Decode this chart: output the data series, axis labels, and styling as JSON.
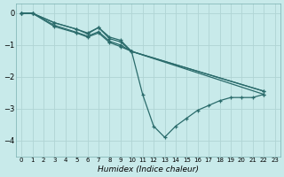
{
  "title": "",
  "xlabel": "Humidex (Indice chaleur)",
  "ylabel": "",
  "bg_color": "#c8eaea",
  "line_color": "#2a6b6b",
  "grid_color": "#d0e8e8",
  "xlim": [
    -0.5,
    23.5
  ],
  "ylim": [
    -4.5,
    0.3
  ],
  "xticks": [
    0,
    1,
    2,
    3,
    4,
    5,
    6,
    7,
    8,
    9,
    10,
    11,
    12,
    13,
    14,
    15,
    16,
    17,
    18,
    19,
    20,
    21,
    22,
    23
  ],
  "yticks": [
    0,
    -1,
    -2,
    -3,
    -4
  ],
  "line1_x": [
    0,
    1,
    3,
    5,
    6,
    7,
    8,
    9,
    10,
    11,
    12,
    13,
    14,
    15,
    16,
    17,
    18,
    19,
    20,
    21,
    22
  ],
  "line1_y": [
    0.0,
    0.0,
    -0.3,
    -0.5,
    -0.65,
    -0.45,
    -0.8,
    -0.9,
    -1.2,
    -2.55,
    -3.55,
    -3.9,
    -3.55,
    -3.3,
    -3.05,
    -2.9,
    -2.75,
    -2.65,
    -2.65,
    -2.65,
    -2.55
  ],
  "line2_x": [
    0,
    1,
    3,
    5,
    6,
    7,
    8,
    9,
    10,
    22
  ],
  "line2_y": [
    0.0,
    0.0,
    -0.3,
    -0.5,
    -0.62,
    -0.45,
    -0.75,
    -0.85,
    -1.2,
    -2.55
  ],
  "line3_x": [
    0,
    1,
    3,
    5,
    6,
    7,
    8,
    9,
    10,
    22
  ],
  "line3_y": [
    0.0,
    0.0,
    -0.38,
    -0.6,
    -0.72,
    -0.58,
    -0.88,
    -1.0,
    -1.2,
    -2.45
  ],
  "line4_x": [
    0,
    1,
    3,
    5,
    6,
    7,
    8,
    9,
    10,
    22
  ],
  "line4_y": [
    0.0,
    0.0,
    -0.42,
    -0.62,
    -0.75,
    -0.62,
    -0.92,
    -1.05,
    -1.2,
    -2.45
  ]
}
